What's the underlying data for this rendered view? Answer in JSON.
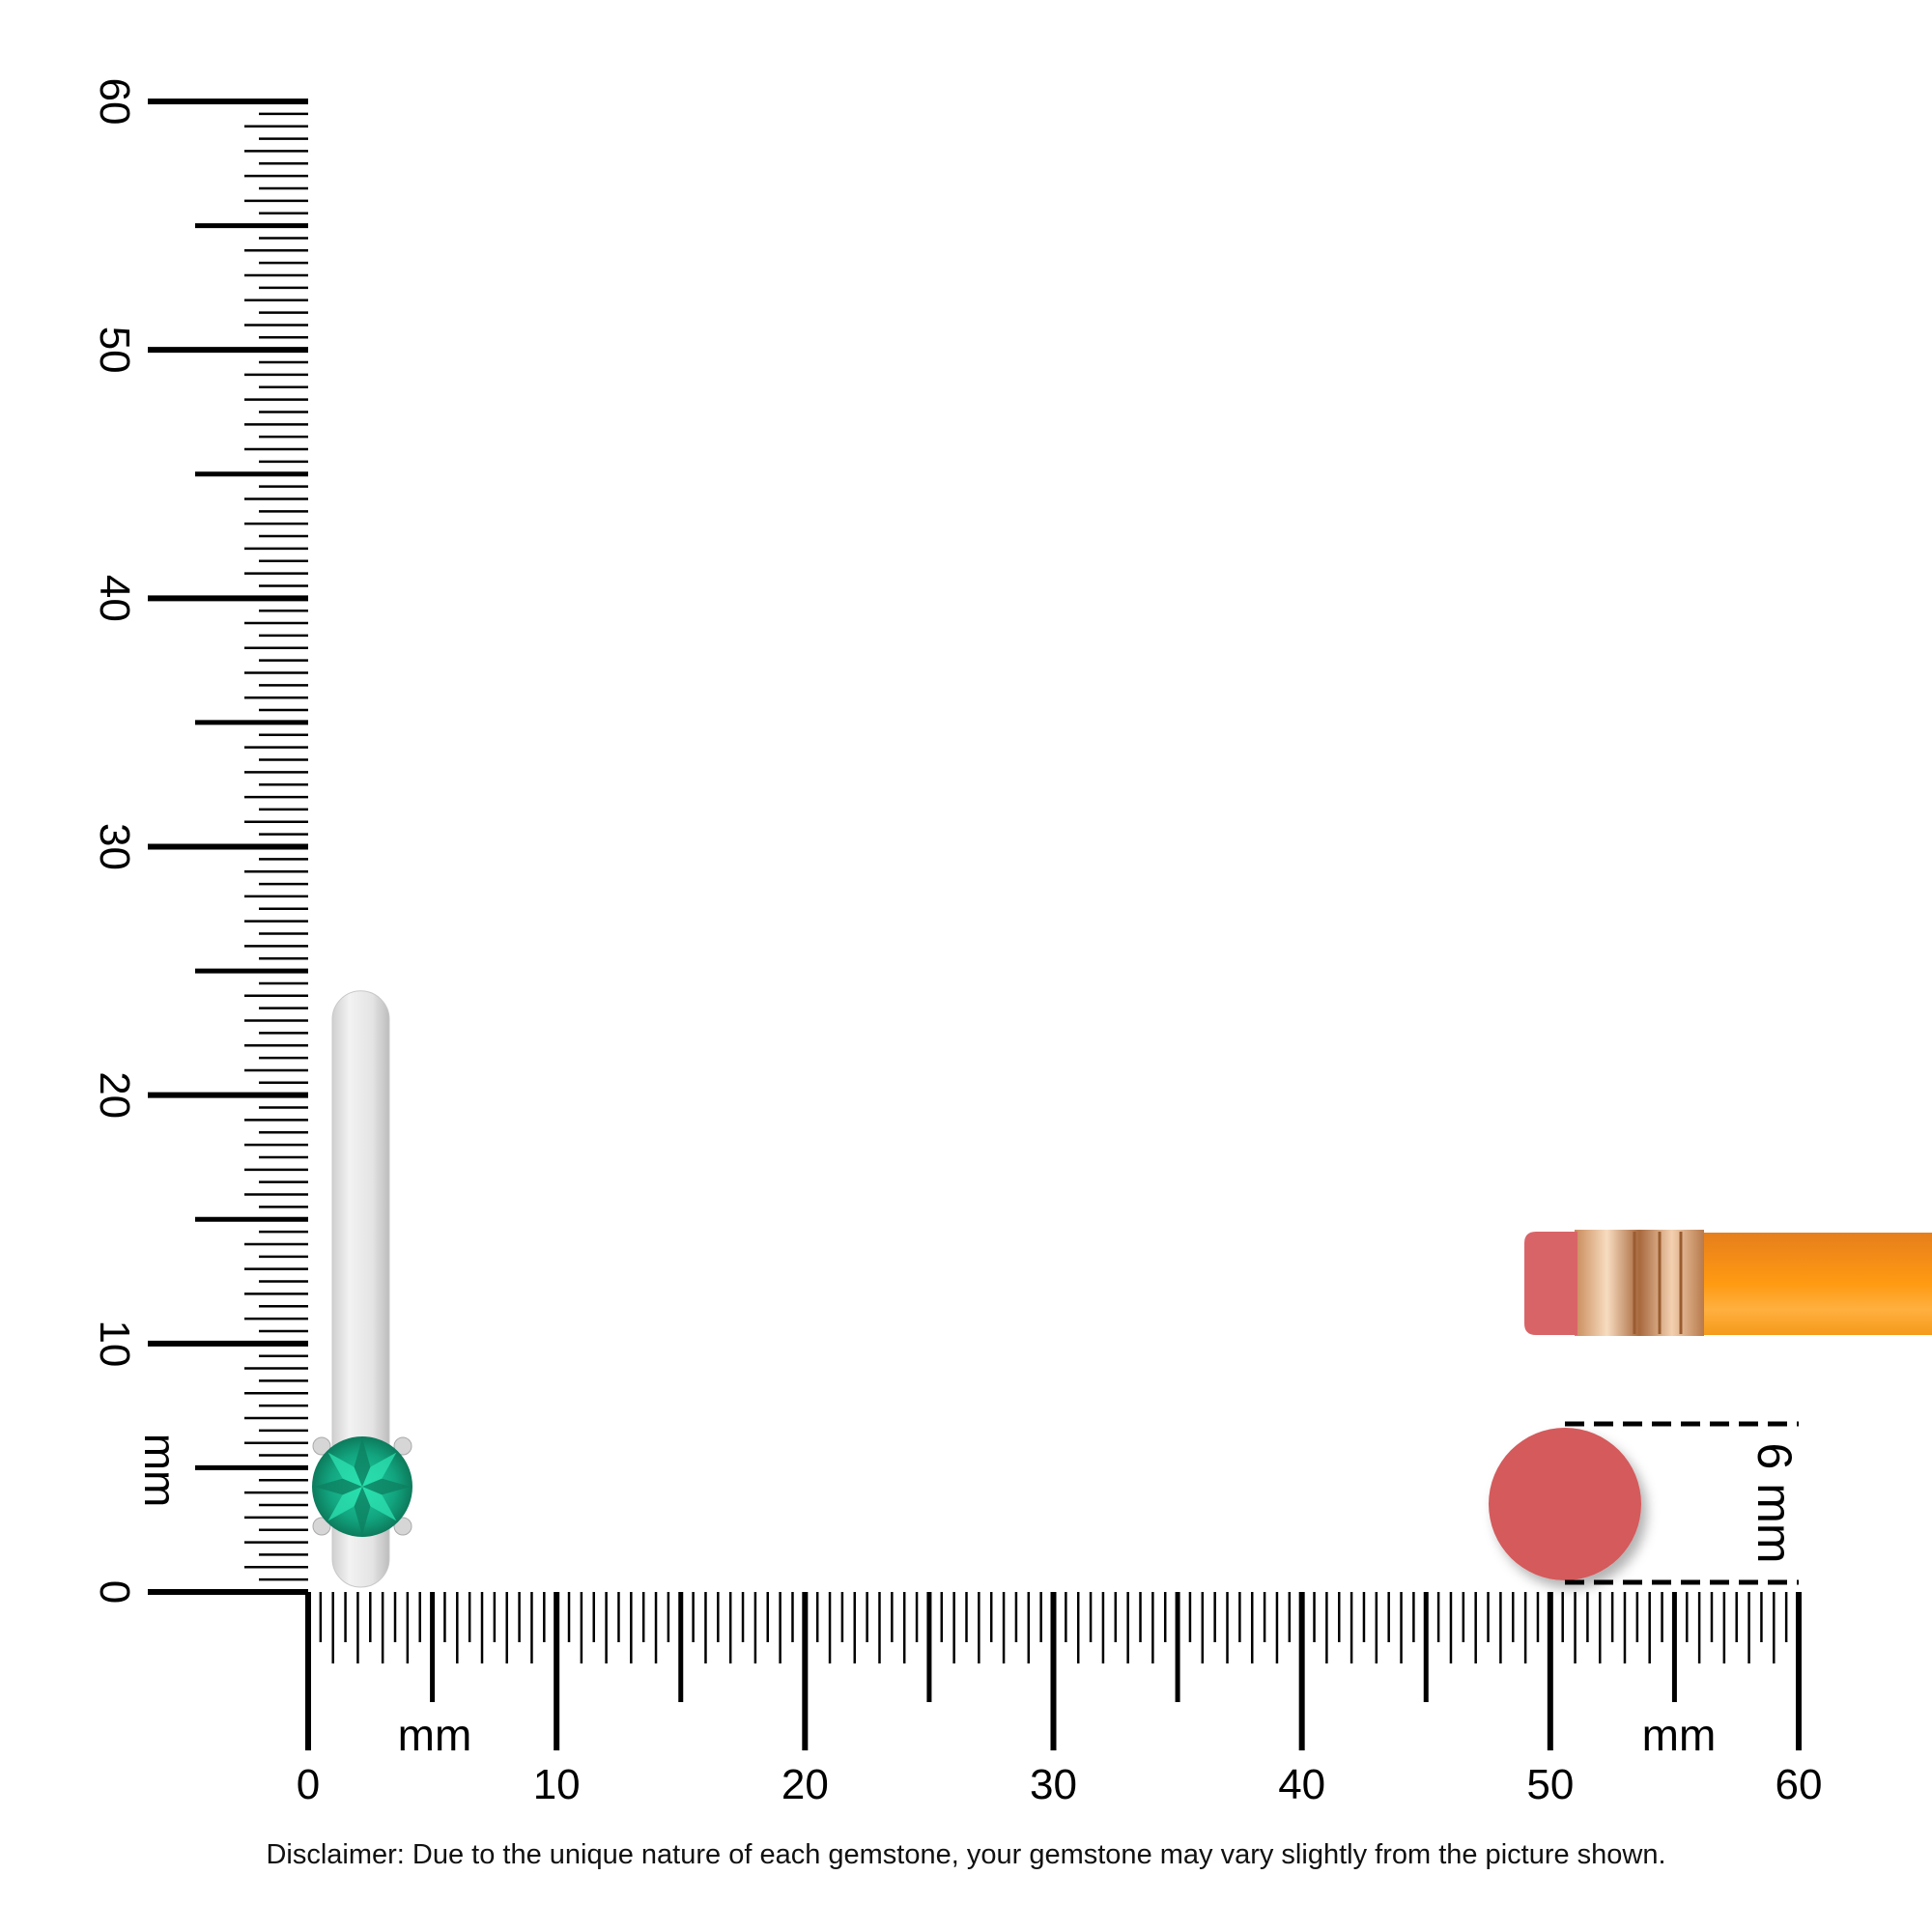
{
  "ruler": {
    "unit_label": "mm",
    "min": 0,
    "max": 60,
    "label_step": 10,
    "mid_step": 5,
    "minor_step": 0.5,
    "labels": [
      "0",
      "10",
      "20",
      "30",
      "40",
      "50",
      "60"
    ]
  },
  "product": {
    "bar_length_mm": 24,
    "gemstone_color": "#12a57f",
    "metal_color": "#e6e6e6"
  },
  "reference": {
    "size_label": "6 mm",
    "eraser_color": "#d45a5b",
    "pencil_color": "#f7941d"
  },
  "disclaimer": "Disclaimer: Due to the unique nature of each gemstone, your gemstone may vary slightly from the picture shown."
}
